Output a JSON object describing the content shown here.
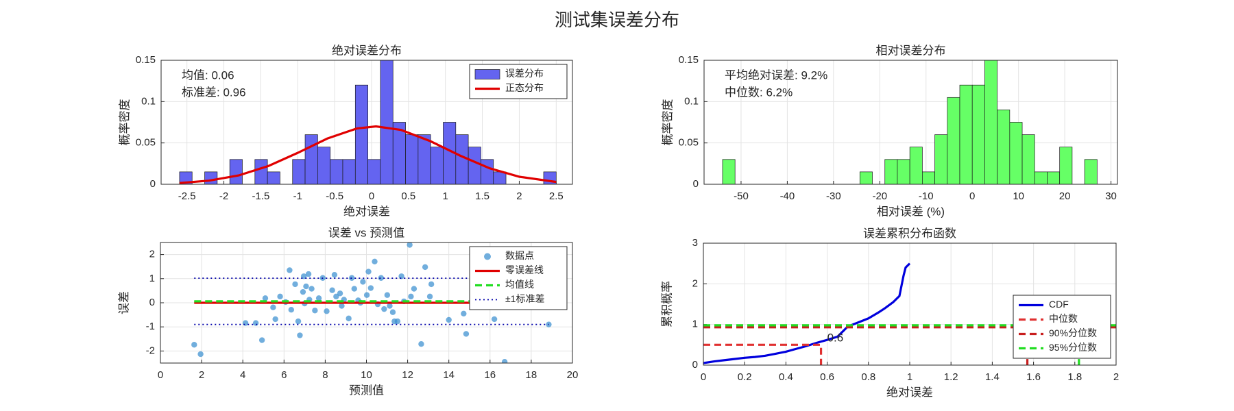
{
  "title": "测试集误差分布",
  "chart_data": [
    {
      "type": "histogram",
      "title": "绝对误差分布",
      "xlabel": "绝对误差",
      "ylabel": "概率密度",
      "xlim": [
        -2.85,
        2.72
      ],
      "ylim": [
        0,
        0.15
      ],
      "xticks": [
        -2.5,
        -2,
        -1.5,
        -1,
        -0.5,
        0,
        0.5,
        1,
        1.5,
        2,
        2.5
      ],
      "yticks": [
        0,
        0.05,
        0.1,
        0.15
      ],
      "grid": true,
      "legend": "upper right",
      "annotations": [
        "均值: 0.06",
        "标准差: 0.96"
      ],
      "bins": [
        -2.6,
        -2.43,
        -2.26,
        -2.09,
        -1.92,
        -1.75,
        -1.58,
        -1.41,
        -1.24,
        -1.07,
        -0.9,
        -0.73,
        -0.56,
        -0.39,
        -0.22,
        -0.05,
        0.12,
        0.29,
        0.46,
        0.63,
        0.8,
        0.97,
        1.14,
        1.31,
        1.48,
        1.65,
        1.82,
        1.99,
        2.16,
        2.33,
        2.5
      ],
      "series": [
        {
          "name": "误差分布",
          "color": "#6464f0",
          "values": [
            0.015,
            0,
            0.015,
            0,
            0.03,
            0,
            0.03,
            0.015,
            0,
            0.03,
            0.06,
            0.045,
            0.03,
            0.03,
            0.12,
            0.03,
            0.15,
            0.075,
            0.06,
            0.06,
            0.045,
            0.075,
            0.06,
            0.045,
            0.03,
            0.015,
            0,
            0,
            0,
            0.015
          ]
        },
        {
          "name": "正态分布",
          "color": "#e00000",
          "style": "solid",
          "x": [
            -2.6,
            -2.2,
            -1.8,
            -1.4,
            -1.0,
            -0.6,
            -0.2,
            0.06,
            0.4,
            0.8,
            1.2,
            1.6,
            2.0,
            2.5
          ],
          "values": [
            0.0015,
            0.0044,
            0.0107,
            0.022,
            0.038,
            0.0553,
            0.0675,
            0.07,
            0.0657,
            0.052,
            0.0346,
            0.0193,
            0.0091,
            0.0028
          ]
        }
      ]
    },
    {
      "type": "histogram",
      "title": "相对误差分布",
      "xlabel": "相对误差 (%)",
      "ylabel": "概率密度",
      "xlim": [
        -58,
        31.4
      ],
      "ylim": [
        0,
        0.15
      ],
      "xticks": [
        -50,
        -40,
        -30,
        -20,
        -10,
        0,
        10,
        20,
        30
      ],
      "yticks": [
        0,
        0.05,
        0.1,
        0.15
      ],
      "grid": true,
      "annotations": [
        "平均绝对误差: 9.2%",
        "中位数: 6.2%"
      ],
      "bins": [
        -54,
        -51.3,
        -48.6,
        -45.9,
        -43.2,
        -40.5,
        -37.8,
        -35.1,
        -32.4,
        -29.7,
        -27,
        -24.3,
        -21.6,
        -18.9,
        -16.2,
        -13.5,
        -10.8,
        -8.1,
        -5.4,
        -2.7,
        0,
        2.7,
        5.4,
        8.1,
        10.8,
        13.5,
        16.2,
        18.9,
        21.6,
        24.3,
        27
      ],
      "color": "#66ff66",
      "values": [
        0.03,
        0,
        0,
        0,
        0,
        0,
        0,
        0,
        0,
        0,
        0,
        0.015,
        0,
        0.03,
        0.03,
        0.045,
        0.015,
        0.06,
        0.105,
        0.12,
        0.12,
        0.15,
        0.09,
        0.075,
        0.06,
        0.015,
        0.015,
        0.045,
        0,
        0.03
      ]
    },
    {
      "type": "scatter",
      "title": "误差 vs 预测值",
      "xlabel": "预测值",
      "ylabel": "误差",
      "xlim": [
        0,
        20
      ],
      "ylim": [
        -2.5,
        2.5
      ],
      "xticks": [
        0,
        2,
        4,
        6,
        8,
        10,
        12,
        14,
        16,
        18,
        20
      ],
      "yticks": [
        -2,
        -1,
        0,
        1,
        2
      ],
      "grid": true,
      "legend": "upper right",
      "series": [
        {
          "name": "数据点",
          "color": "#3a8fd0",
          "x": [
            1.64,
            1.95,
            4.13,
            4.63,
            4.93,
            5.09,
            5.47,
            5.58,
            5.81,
            6.08,
            6.27,
            6.35,
            6.54,
            6.69,
            6.77,
            6.92,
            6.96,
            7.0,
            7.07,
            7.19,
            7.23,
            7.34,
            7.5,
            7.69,
            7.88,
            8.07,
            8.34,
            8.45,
            8.53,
            8.72,
            8.8,
            8.91,
            9.14,
            9.29,
            9.41,
            9.6,
            9.71,
            9.83,
            10.02,
            10.1,
            10.21,
            10.4,
            10.55,
            10.71,
            10.86,
            11.01,
            11.13,
            11.28,
            11.36,
            11.51,
            11.7,
            11.82,
            12.1,
            12.16,
            12.31,
            12.66,
            12.85,
            13.08,
            13.15,
            14.0,
            14.72,
            14.84,
            16.21,
            16.71,
            18.85
          ],
          "values": [
            -1.74,
            -2.13,
            -0.84,
            -0.84,
            -1.55,
            0.19,
            -0.19,
            -0.68,
            0.26,
            0.03,
            1.35,
            -0.29,
            0.77,
            -0.77,
            -1.35,
            0.45,
            1.1,
            -0.03,
            0.68,
            1.19,
            0.13,
            0.58,
            -0.32,
            0.19,
            1.03,
            -0.35,
            0.52,
            1.16,
            0.26,
            0.39,
            -0.13,
            0.13,
            -0.65,
            1.03,
            0.58,
            0.1,
            0,
            0.87,
            0.32,
            1.29,
            0.61,
            1.71,
            -0.06,
            1.03,
            -0.26,
            0.32,
            -0.13,
            -0.39,
            -0.77,
            -0.77,
            1.1,
            0.06,
            2.4,
            0.26,
            0.58,
            -1.71,
            1.48,
            0.26,
            0.77,
            -0.71,
            -0.45,
            -1.29,
            -0.68,
            -2.45,
            -0.9
          ]
        },
        {
          "name": "零误差线",
          "color": "#e00000",
          "style": "solid",
          "x": [
            1.64,
            18.85
          ],
          "values": [
            0,
            0
          ]
        },
        {
          "name": "均值线",
          "color": "#22dd22",
          "style": "dashed",
          "x": [
            1.64,
            18.85
          ],
          "values": [
            0.06,
            0.06
          ]
        },
        {
          "name": "±1标准差",
          "color": "#0000aa",
          "style": "dotted",
          "x": [
            1.64,
            18.85,
            null,
            1.64,
            18.85
          ],
          "values": [
            1.02,
            1.02,
            null,
            -0.9,
            -0.9
          ]
        }
      ]
    },
    {
      "type": "line",
      "title": "误差累积分布函数",
      "xlabel": "绝对误差",
      "ylabel": "累积概率",
      "xlim": [
        0,
        2
      ],
      "ylim": [
        0,
        3
      ],
      "xticks": [
        0,
        0.2,
        0.4,
        0.6,
        0.8,
        1,
        1.2,
        1.4,
        1.6,
        1.8,
        2
      ],
      "yticks": [
        0,
        1,
        2,
        3
      ],
      "grid": true,
      "legend": "lower right",
      "annotations": [
        "0.6"
      ],
      "series": [
        {
          "name": "CDF",
          "color": "#0000dd",
          "style": "solid",
          "x": [
            0,
            0.05,
            0.1,
            0.15,
            0.2,
            0.25,
            0.3,
            0.35,
            0.4,
            0.45,
            0.5,
            0.55,
            0.6,
            0.65,
            0.68,
            0.7,
            0.75,
            0.8,
            0.85,
            0.88,
            0.92,
            0.95,
            0.97,
            0.98,
            1.0
          ],
          "values": [
            0.05,
            0.09,
            0.12,
            0.15,
            0.18,
            0.2,
            0.23,
            0.28,
            0.33,
            0.4,
            0.47,
            0.55,
            0.62,
            0.7,
            0.85,
            0.95,
            1.05,
            1.15,
            1.3,
            1.4,
            1.55,
            1.7,
            2.2,
            2.4,
            2.5
          ]
        },
        {
          "name": "中位数",
          "color": "#e03030",
          "style": "dashed",
          "x": [
            0,
            0.57,
            0.57
          ],
          "values": [
            0.5,
            0.5,
            0
          ]
        },
        {
          "name": "90%分位数",
          "color": "#c81e1e",
          "style": "dashed",
          "x": [
            0,
            2,
            null,
            1.57,
            1.57
          ],
          "values": [
            0.93,
            0.93,
            null,
            0,
            0.15
          ]
        },
        {
          "name": "95%分位数",
          "color": "#22dd22",
          "style": "dashed",
          "x": [
            0,
            2,
            null,
            1.82,
            1.82
          ],
          "values": [
            0.98,
            0.98,
            null,
            0,
            0.15
          ]
        }
      ]
    }
  ]
}
